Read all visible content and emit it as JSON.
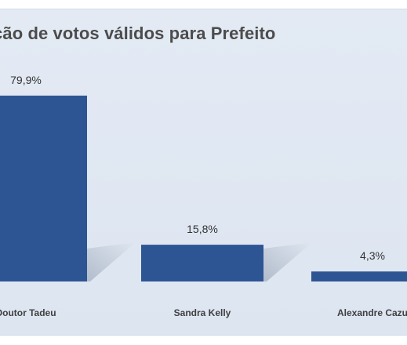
{
  "chart_data": {
    "type": "bar",
    "title": "Intenção de votos válidos para Prefeito",
    "categories": [
      "Doutor Tadeu",
      "Sandra Kelly",
      "Alexandre Cazu"
    ],
    "values": [
      79.9,
      15.8,
      4.3
    ],
    "data_labels": [
      "79,9%",
      "15,8%",
      "4,3%"
    ],
    "unit": "%",
    "ylim": [
      0,
      100
    ],
    "grid": false,
    "legend": "none",
    "colors": {
      "bar": "#2e5593",
      "background": "#dfe7f2",
      "title": "#4c4c4c"
    }
  }
}
